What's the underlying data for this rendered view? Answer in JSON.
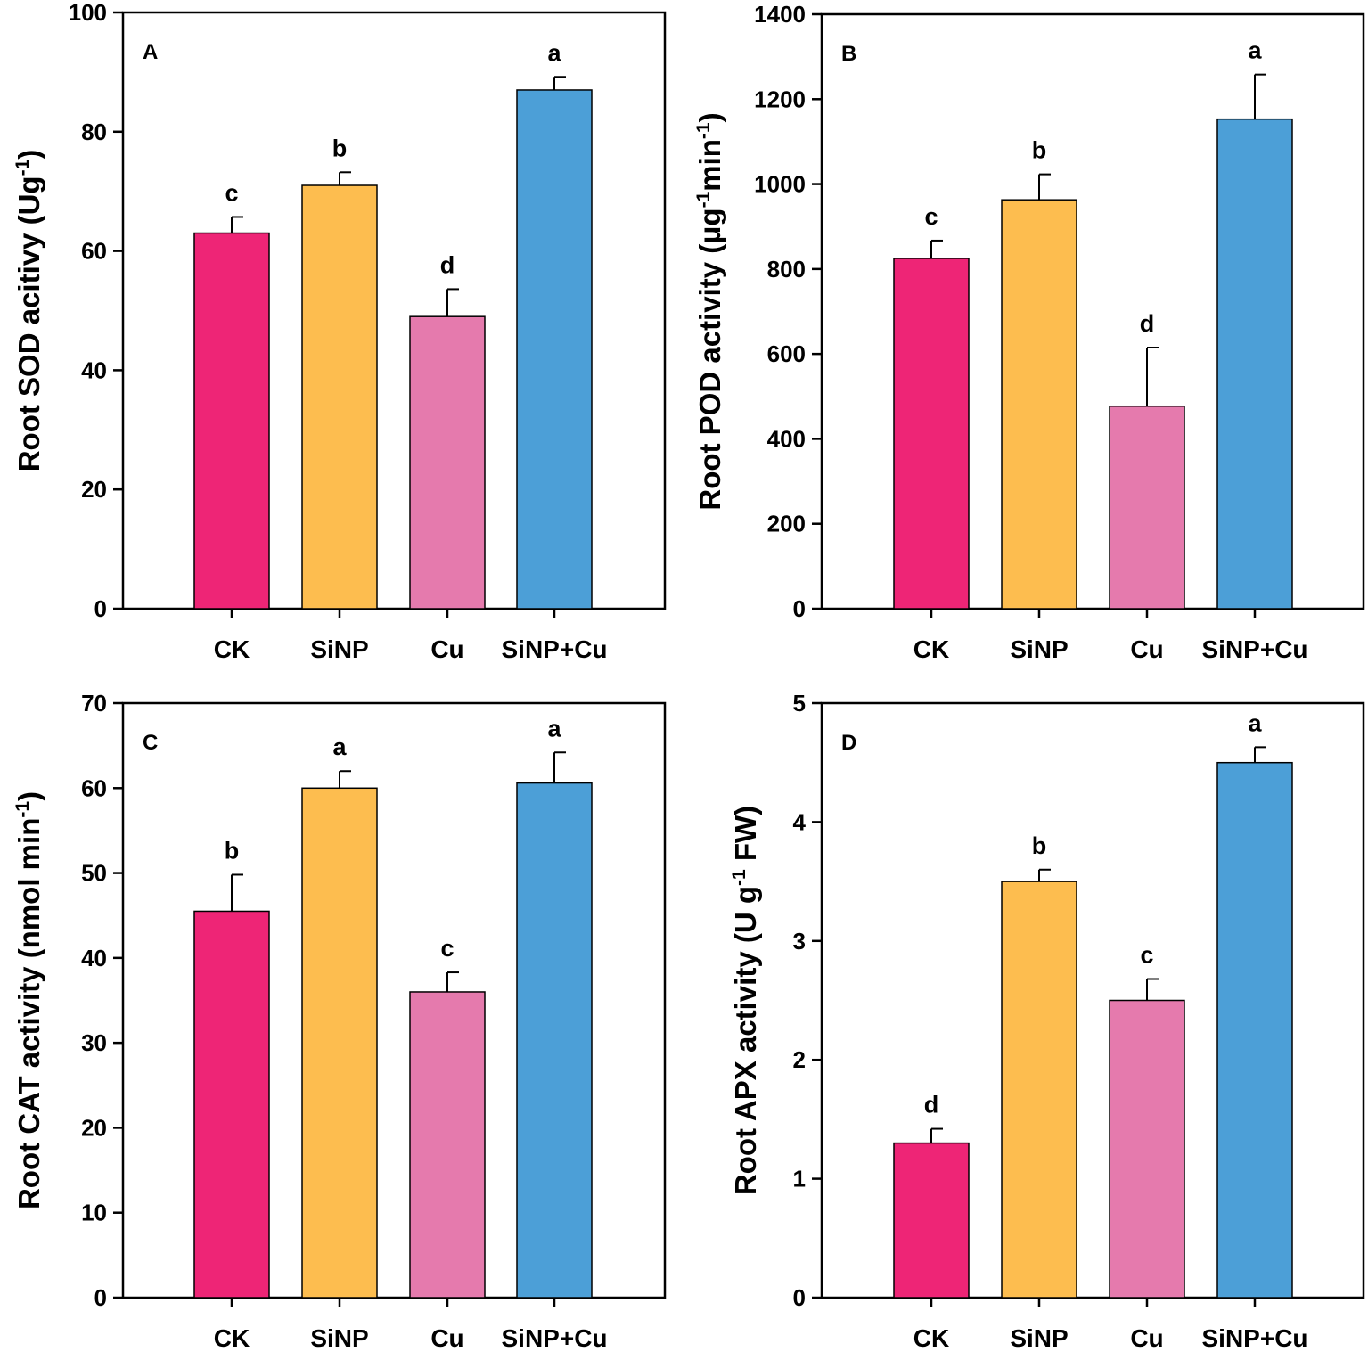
{
  "colors": {
    "CK": "#ee2576",
    "SiNP": "#fdbd4f",
    "Cu": "#e57aad",
    "SiNP+Cu": "#4c9fd7",
    "axis": "#000000"
  },
  "chart_data": [
    {
      "type": "bar",
      "panel": "A",
      "categories": [
        "CK",
        "SiNP",
        "Cu",
        "SiNP+Cu"
      ],
      "values": [
        63,
        71,
        49,
        87
      ],
      "errors": [
        2.7,
        2.2,
        4.6,
        2.2
      ],
      "significance": [
        "c",
        "b",
        "d",
        "a"
      ],
      "ylabel_parts": [
        {
          "t": "Root SOD acitivy (Ug"
        },
        {
          "t": "-1",
          "sup": true
        },
        {
          "t": ")"
        }
      ],
      "ylim": [
        0,
        100
      ],
      "yticks": [
        0,
        20,
        40,
        60,
        80,
        100
      ]
    },
    {
      "type": "bar",
      "panel": "B",
      "categories": [
        "CK",
        "SiNP",
        "Cu",
        "SiNP+Cu"
      ],
      "values": [
        825,
        963,
        477,
        1153
      ],
      "errors": [
        42,
        60,
        138,
        105
      ],
      "significance": [
        "c",
        "b",
        "d",
        "a"
      ],
      "ylabel_parts": [
        {
          "t": "Root POD activity (μg"
        },
        {
          "t": "-1",
          "sup": true
        },
        {
          "t": "min"
        },
        {
          "t": "-1",
          "sup": true
        },
        {
          "t": ")"
        }
      ],
      "ylim": [
        0,
        1400
      ],
      "yticks": [
        0,
        200,
        400,
        600,
        800,
        1000,
        1200,
        1400
      ]
    },
    {
      "type": "bar",
      "panel": "C",
      "categories": [
        "CK",
        "SiNP",
        "Cu",
        "SiNP+Cu"
      ],
      "values": [
        45.5,
        60,
        36,
        60.6
      ],
      "errors": [
        4.3,
        2.0,
        2.3,
        3.6
      ],
      "significance": [
        "b",
        "a",
        "c",
        "a"
      ],
      "ylabel_parts": [
        {
          "t": "Root CAT activity (nmol min"
        },
        {
          "t": "-1",
          "sup": true
        },
        {
          "t": ")"
        }
      ],
      "ylim": [
        0,
        70
      ],
      "yticks": [
        0,
        10,
        20,
        30,
        40,
        50,
        60,
        70
      ]
    },
    {
      "type": "bar",
      "panel": "D",
      "categories": [
        "CK",
        "SiNP",
        "Cu",
        "SiNP+Cu"
      ],
      "values": [
        1.3,
        3.5,
        2.5,
        4.5
      ],
      "errors": [
        0.12,
        0.1,
        0.18,
        0.13
      ],
      "significance": [
        "d",
        "b",
        "c",
        "a"
      ],
      "ylabel_parts": [
        {
          "t": "Root APX activity (U g"
        },
        {
          "t": "-1",
          "sup": true
        },
        {
          "t": " FW)"
        }
      ],
      "ylim": [
        0,
        5
      ],
      "yticks": [
        0,
        1,
        2,
        3,
        4,
        5
      ]
    }
  ]
}
